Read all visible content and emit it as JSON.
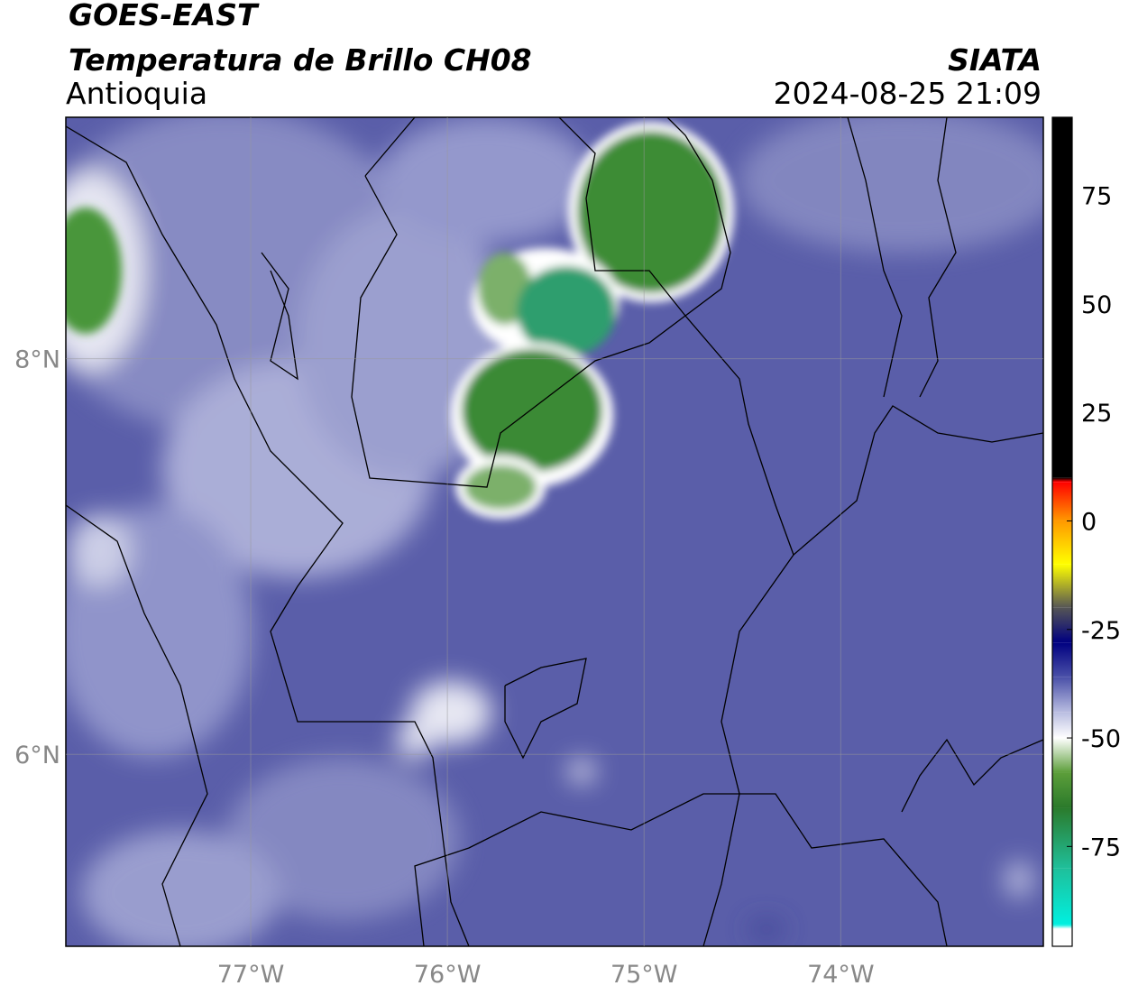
{
  "chart_data": {
    "type": "map",
    "title": "GOES-EAST",
    "subtitle": "Temperatura de Brillo CH08",
    "region": "Antioquia",
    "source": "SIATA",
    "timestamp": "2024-08-25 21:09",
    "xlim": [
      -77.94,
      -72.97
    ],
    "ylim": [
      5.03,
      9.22
    ],
    "xticks": [
      {
        "value": -77,
        "label": "77°W"
      },
      {
        "value": -76,
        "label": "76°W"
      },
      {
        "value": -75,
        "label": "75°W"
      },
      {
        "value": -74,
        "label": "74°W"
      }
    ],
    "yticks": [
      {
        "value": 8,
        "label": "8°N"
      },
      {
        "value": 6,
        "label": "6°N"
      }
    ],
    "grid": true,
    "colorbar": {
      "lim": [
        -98,
        93
      ],
      "ticks": [
        75,
        50,
        25,
        0,
        -25,
        -50,
        -75
      ],
      "stops": [
        {
          "value": 93,
          "color": "#000000"
        },
        {
          "value": 10,
          "color": "#000000"
        },
        {
          "value": 9,
          "color": "#ff0000"
        },
        {
          "value": 0,
          "color": "#ff9900"
        },
        {
          "value": -10,
          "color": "#ffff00"
        },
        {
          "value": -20,
          "color": "#555555"
        },
        {
          "value": -28,
          "color": "#000080"
        },
        {
          "value": -36,
          "color": "#4a50a8"
        },
        {
          "value": -44,
          "color": "#b8bce0"
        },
        {
          "value": -50,
          "color": "#ffffff"
        },
        {
          "value": -58,
          "color": "#5c9e3a"
        },
        {
          "value": -66,
          "color": "#2b7a2b"
        },
        {
          "value": -80,
          "color": "#1fbf9a"
        },
        {
          "value": -93,
          "color": "#00f0e0"
        },
        {
          "value": -94,
          "color": "#ffffff"
        },
        {
          "value": -98,
          "color": "#ffffff"
        }
      ]
    }
  }
}
